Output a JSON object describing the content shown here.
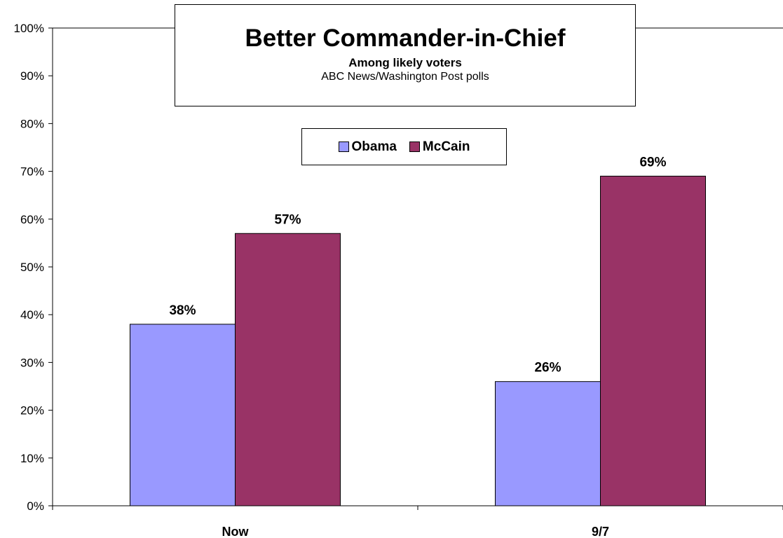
{
  "chart_data": {
    "type": "bar",
    "title": "Better Commander-in-Chief",
    "subtitle": "Among likely voters",
    "source": "ABC News/Washington Post polls",
    "categories": [
      "Now",
      "9/7"
    ],
    "series": [
      {
        "name": "Obama",
        "values": [
          38,
          26
        ],
        "color": "#9999ff"
      },
      {
        "name": "McCain",
        "values": [
          57,
          69
        ],
        "color": "#993366"
      }
    ],
    "data_labels": [
      [
        "38%",
        "26%"
      ],
      [
        "57%",
        "69%"
      ]
    ],
    "yticks": [
      "0%",
      "10%",
      "20%",
      "30%",
      "40%",
      "50%",
      "60%",
      "70%",
      "80%",
      "90%",
      "100%"
    ],
    "ylim": [
      0,
      100
    ],
    "xlabel": "",
    "ylabel": "",
    "grid": false,
    "legend_position": "top-center"
  }
}
